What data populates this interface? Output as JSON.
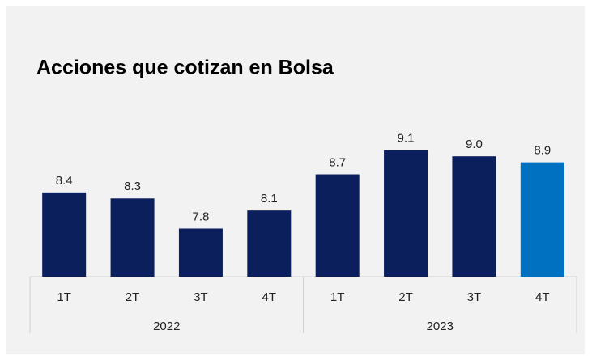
{
  "chart_data": {
    "type": "bar",
    "title": "Acciones que cotizan en Bolsa",
    "groups": [
      {
        "name": "2022",
        "categories": [
          "1T",
          "2T",
          "3T",
          "4T"
        ],
        "values": [
          8.4,
          8.3,
          7.8,
          8.1
        ],
        "value_labels": [
          "8.4",
          "8.3",
          "7.8",
          "8.1"
        ],
        "colors": [
          "#0b1f5c",
          "#0b1f5c",
          "#0b1f5c",
          "#0b1f5c"
        ]
      },
      {
        "name": "2023",
        "categories": [
          "1T",
          "2T",
          "3T",
          "4T"
        ],
        "values": [
          8.7,
          9.1,
          9.0,
          8.9
        ],
        "value_labels": [
          "8.7",
          "9.1",
          "9.0",
          "8.9"
        ],
        "colors": [
          "#0b1f5c",
          "#0b1f5c",
          "#0b1f5c",
          "#0070c0"
        ]
      }
    ],
    "ylim": [
      7,
      9.5
    ]
  }
}
